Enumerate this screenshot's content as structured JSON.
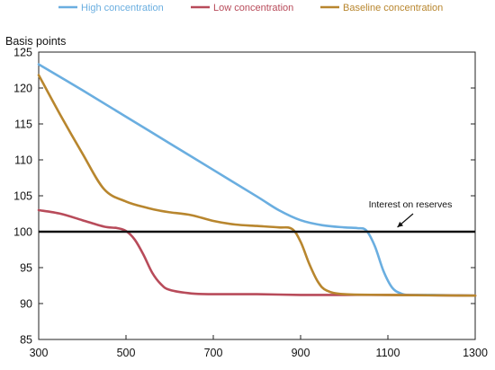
{
  "chart_data": {
    "type": "line",
    "title": "",
    "xlabel": "",
    "ylabel": "Basis points",
    "xlim": [
      300,
      1300
    ],
    "ylim": [
      85,
      125
    ],
    "x_ticks": [
      300,
      500,
      700,
      900,
      1100,
      1300
    ],
    "y_ticks": [
      85,
      90,
      95,
      100,
      105,
      110,
      115,
      120,
      125
    ],
    "grid": false,
    "legend_position": "top",
    "series": [
      {
        "name": "High concentration",
        "color": "#6aaee0",
        "points": [
          [
            300,
            123.3
          ],
          [
            400,
            119.7
          ],
          [
            500,
            116.0
          ],
          [
            600,
            112.3
          ],
          [
            700,
            108.6
          ],
          [
            800,
            104.9
          ],
          [
            850,
            103.0
          ],
          [
            900,
            101.6
          ],
          [
            950,
            100.9
          ],
          [
            1000,
            100.6
          ],
          [
            1030,
            100.5
          ],
          [
            1050,
            100.2
          ],
          [
            1070,
            98.0
          ],
          [
            1090,
            94.5
          ],
          [
            1110,
            92.2
          ],
          [
            1130,
            91.4
          ],
          [
            1150,
            91.2
          ],
          [
            1200,
            91.2
          ],
          [
            1300,
            91.1
          ]
        ]
      },
      {
        "name": "Low concentration",
        "color": "#b84b5a",
        "points": [
          [
            300,
            103.0
          ],
          [
            350,
            102.5
          ],
          [
            400,
            101.6
          ],
          [
            450,
            100.7
          ],
          [
            480,
            100.5
          ],
          [
            500,
            100.1
          ],
          [
            520,
            98.9
          ],
          [
            540,
            96.8
          ],
          [
            560,
            94.3
          ],
          [
            580,
            92.7
          ],
          [
            600,
            91.9
          ],
          [
            650,
            91.4
          ],
          [
            700,
            91.3
          ],
          [
            800,
            91.3
          ],
          [
            900,
            91.2
          ],
          [
            1000,
            91.2
          ],
          [
            1100,
            91.2
          ],
          [
            1300,
            91.1
          ]
        ]
      },
      {
        "name": "Baseline concentration",
        "color": "#b8862e",
        "points": [
          [
            300,
            121.8
          ],
          [
            350,
            116.2
          ],
          [
            400,
            110.9
          ],
          [
            450,
            105.9
          ],
          [
            500,
            104.2
          ],
          [
            550,
            103.3
          ],
          [
            580,
            102.9
          ],
          [
            600,
            102.7
          ],
          [
            650,
            102.3
          ],
          [
            700,
            101.5
          ],
          [
            750,
            101.0
          ],
          [
            800,
            100.8
          ],
          [
            850,
            100.6
          ],
          [
            880,
            100.4
          ],
          [
            900,
            98.6
          ],
          [
            920,
            95.5
          ],
          [
            940,
            93.0
          ],
          [
            960,
            91.8
          ],
          [
            1000,
            91.3
          ],
          [
            1100,
            91.2
          ],
          [
            1300,
            91.1
          ]
        ]
      }
    ],
    "reference_line": {
      "y": 100,
      "color": "#111111"
    },
    "annotations": [
      {
        "text": "Interest on reserves",
        "arrow_to": [
          1130,
          100
        ]
      }
    ]
  }
}
